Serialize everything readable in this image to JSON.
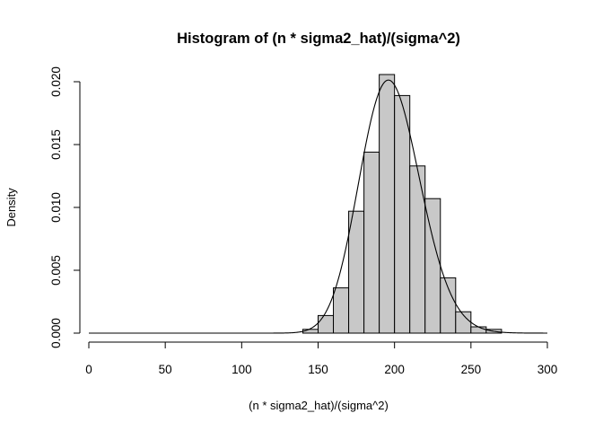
{
  "chart_data": {
    "type": "bar",
    "title": "Histogram of (n * sigma2_hat)/(sigma^2)",
    "xlabel": "(n * sigma2_hat)/(sigma^2)",
    "ylabel": "Density",
    "xlim": [
      0,
      300
    ],
    "ylim": [
      0,
      0.0205
    ],
    "x_ticks": [
      0,
      50,
      100,
      150,
      200,
      250,
      300
    ],
    "x_tick_labels": [
      "0",
      "50",
      "100",
      "150",
      "200",
      "250",
      "300"
    ],
    "y_ticks": [
      0,
      0.005,
      0.01,
      0.015,
      0.02
    ],
    "y_tick_labels": [
      "0.000",
      "0.005",
      "0.010",
      "0.015",
      "0.020"
    ],
    "grid": false,
    "bin_width": 10,
    "bins": [
      {
        "start": 140,
        "end": 150,
        "density": 0.0003
      },
      {
        "start": 150,
        "end": 160,
        "density": 0.0014
      },
      {
        "start": 160,
        "end": 170,
        "density": 0.0036
      },
      {
        "start": 170,
        "end": 180,
        "density": 0.0097
      },
      {
        "start": 180,
        "end": 190,
        "density": 0.0144
      },
      {
        "start": 190,
        "end": 200,
        "density": 0.021
      },
      {
        "start": 200,
        "end": 210,
        "density": 0.0189
      },
      {
        "start": 210,
        "end": 220,
        "density": 0.0133
      },
      {
        "start": 220,
        "end": 230,
        "density": 0.0107
      },
      {
        "start": 230,
        "end": 240,
        "density": 0.0044
      },
      {
        "start": 240,
        "end": 250,
        "density": 0.0017
      },
      {
        "start": 250,
        "end": 260,
        "density": 0.0005
      },
      {
        "start": 260,
        "end": 270,
        "density": 0.0003
      }
    ],
    "curve": {
      "type": "density",
      "distribution": "chi-squared",
      "df": 198
    },
    "colors": {
      "bar_fill": "#c8c8c8",
      "bar_stroke": "#000000",
      "curve": "#000000"
    }
  }
}
